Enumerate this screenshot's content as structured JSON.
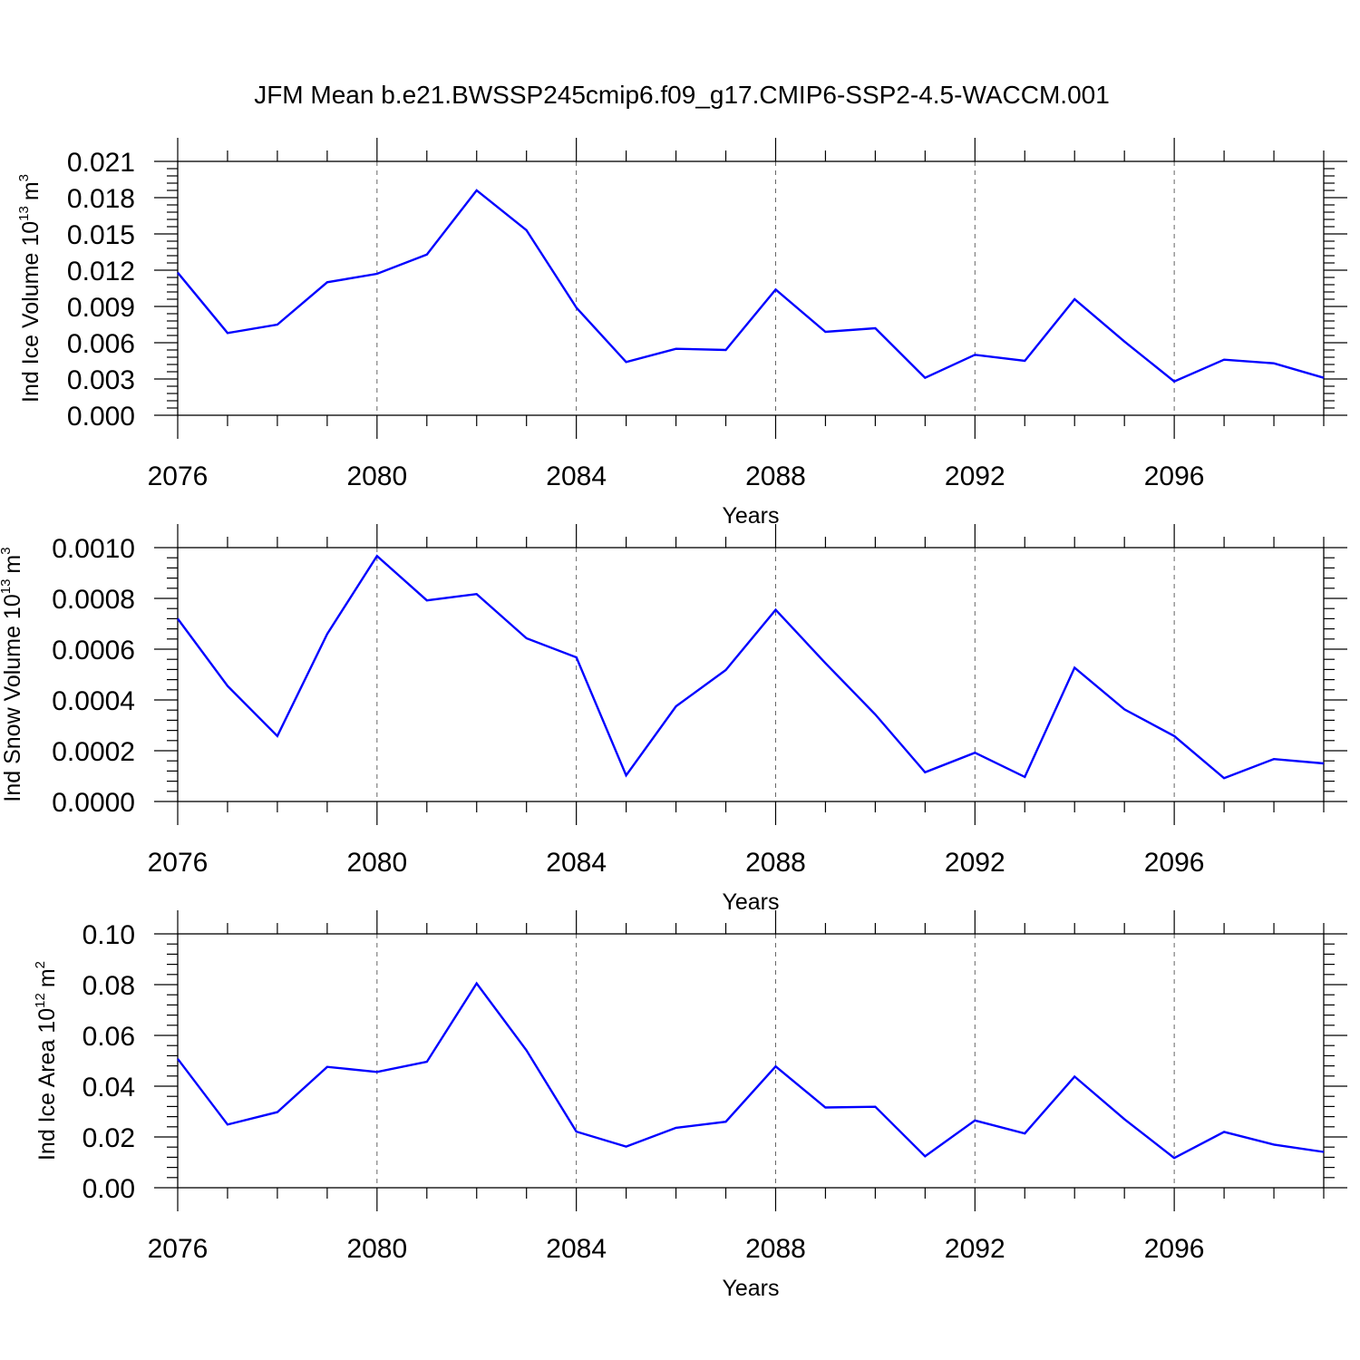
{
  "title": "JFM Mean b.e21.BWSSP245cmip6.f09_g17.CMIP6-SSP2-4.5-WACCM.001",
  "chart_data": [
    {
      "type": "line",
      "ylabel_main": "Ind Ice Volume 10",
      "ylabel_exp": "13",
      "ylabel_unit": "m",
      "ylabel_unit_exp": "3",
      "xlabel": "Years",
      "xlim": [
        2076,
        2099
      ],
      "ylim": [
        0,
        0.021
      ],
      "xticks": [
        "2076",
        "2080",
        "2084",
        "2088",
        "2092",
        "2096"
      ],
      "yticks": [
        "0.000",
        "0.003",
        "0.006",
        "0.009",
        "0.012",
        "0.015",
        "0.018",
        "0.021"
      ],
      "grid": "vertical-dashed",
      "x": [
        2076,
        2077,
        2078,
        2079,
        2080,
        2081,
        2082,
        2083,
        2084,
        2085,
        2086,
        2087,
        2088,
        2089,
        2090,
        2091,
        2092,
        2093,
        2094,
        2095,
        2096,
        2097,
        2098,
        2099
      ],
      "series": [
        {
          "color": "#0000ff",
          "values": [
            0.0118,
            0.0068,
            0.0075,
            0.011,
            0.0117,
            0.0133,
            0.0186,
            0.0153,
            0.0089,
            0.0044,
            0.0055,
            0.0054,
            0.0104,
            0.0069,
            0.0072,
            0.0031,
            0.005,
            0.0045,
            0.0096,
            0.0061,
            0.0028,
            0.0046,
            0.0043,
            0.0031
          ]
        }
      ]
    },
    {
      "type": "line",
      "ylabel_main": "Ind Snow Volume 10",
      "ylabel_exp": "13",
      "ylabel_unit": "m",
      "ylabel_unit_exp": "3",
      "xlabel": "Years",
      "xlim": [
        2076,
        2099
      ],
      "ylim": [
        0,
        0.001
      ],
      "xticks": [
        "2076",
        "2080",
        "2084",
        "2088",
        "2092",
        "2096"
      ],
      "yticks": [
        "0.0000",
        "0.0002",
        "0.0004",
        "0.0006",
        "0.0008",
        "0.0010"
      ],
      "grid": "vertical-dashed",
      "x": [
        2076,
        2077,
        2078,
        2079,
        2080,
        2081,
        2082,
        2083,
        2084,
        2085,
        2086,
        2087,
        2088,
        2089,
        2090,
        2091,
        2092,
        2093,
        2094,
        2095,
        2096,
        2097,
        2098,
        2099
      ],
      "series": [
        {
          "color": "#0000ff",
          "values": [
            0.00072,
            0.000455,
            0.000258,
            0.00066,
            0.000967,
            0.000792,
            0.000817,
            0.000643,
            0.000568,
            0.000103,
            0.000375,
            0.000518,
            0.000755,
            0.000545,
            0.000343,
            0.000115,
            0.000192,
            9.68e-05,
            0.000527,
            0.000363,
            0.000258,
            9.17e-05,
            0.000167,
            0.00015
          ]
        }
      ]
    },
    {
      "type": "line",
      "ylabel_main": "Ind Ice Area 10",
      "ylabel_exp": "12",
      "ylabel_unit": "m",
      "ylabel_unit_exp": "2",
      "xlabel": "Years",
      "xlim": [
        2076,
        2099
      ],
      "ylim": [
        0,
        0.1
      ],
      "xticks": [
        "2076",
        "2080",
        "2084",
        "2088",
        "2092",
        "2096"
      ],
      "yticks": [
        "0.00",
        "0.02",
        "0.04",
        "0.06",
        "0.08",
        "0.10"
      ],
      "grid": "vertical-dashed",
      "x": [
        2076,
        2077,
        2078,
        2079,
        2080,
        2081,
        2082,
        2083,
        2084,
        2085,
        2086,
        2087,
        2088,
        2089,
        2090,
        2091,
        2092,
        2093,
        2094,
        2095,
        2096,
        2097,
        2098,
        2099
      ],
      "series": [
        {
          "color": "#0000ff",
          "values": [
            0.0508,
            0.0249,
            0.0298,
            0.0476,
            0.0456,
            0.0496,
            0.0805,
            0.0541,
            0.0221,
            0.0162,
            0.0236,
            0.026,
            0.0478,
            0.0316,
            0.0319,
            0.0124,
            0.0265,
            0.0214,
            0.0438,
            0.027,
            0.0117,
            0.022,
            0.017,
            0.0141
          ]
        }
      ]
    }
  ]
}
